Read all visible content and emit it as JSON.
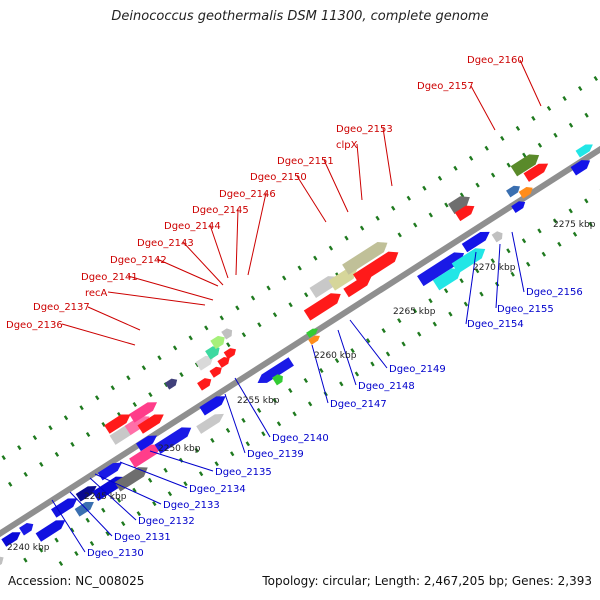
{
  "title": "Deinococcus geothermalis DSM 11300, complete genome",
  "accession": "Accession: NC_008025",
  "summary": "Topology: circular; Length: 2,467,205 bp; Genes: 2,393",
  "colors": {
    "backbone": "#8f8f8f",
    "tick_major": "#1f7a1f",
    "tick_minor": "#2e9a2e",
    "label_red": "#cc0000",
    "label_blue": "#0000cc"
  },
  "scale_labels": [
    {
      "id": "kbp-2240",
      "text": "2240 kbp"
    },
    {
      "id": "kbp-2245",
      "text": "2245 kbp"
    },
    {
      "id": "kbp-2250",
      "text": "2250 kbp"
    },
    {
      "id": "kbp-2255",
      "text": "2255 kbp"
    },
    {
      "id": "kbp-2260",
      "text": "2260 kbp"
    },
    {
      "id": "kbp-2265",
      "text": "2265 kbp"
    },
    {
      "id": "kbp-2270",
      "text": "2270 kbp"
    },
    {
      "id": "kbp-2275",
      "text": "2275 kbp"
    }
  ],
  "upper_labels": [
    "Dgeo_2136",
    "Dgeo_2137",
    "recA",
    "Dgeo_2141",
    "Dgeo_2142",
    "Dgeo_2143",
    "Dgeo_2144",
    "Dgeo_2145",
    "Dgeo_2146",
    "Dgeo_2150",
    "Dgeo_2151",
    "clpX",
    "Dgeo_2153",
    "Dgeo_2157",
    "Dgeo_2160"
  ],
  "lower_labels": [
    "Dgeo_2130",
    "Dgeo_2131",
    "Dgeo_2132",
    "Dgeo_2133",
    "Dgeo_2134",
    "Dgeo_2135",
    "Dgeo_2139",
    "Dgeo_2140",
    "Dgeo_2147",
    "Dgeo_2148",
    "Dgeo_2149",
    "Dgeo_2154",
    "Dgeo_2155",
    "Dgeo_2156"
  ]
}
